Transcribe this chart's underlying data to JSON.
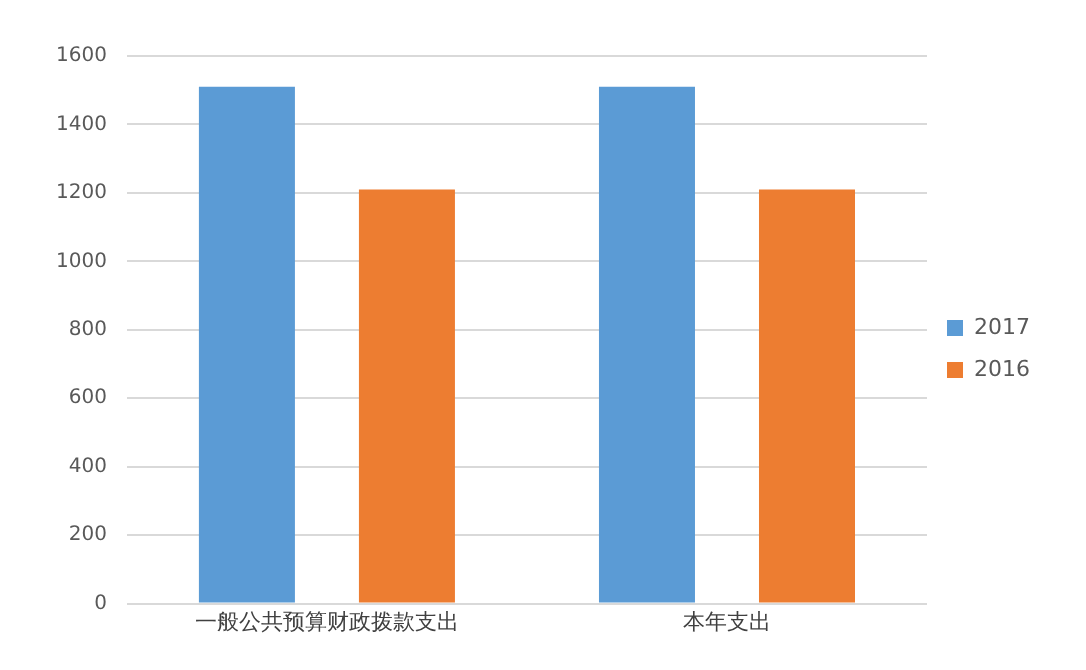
{
  "chart_data": {
    "type": "bar",
    "categories": [
      "一般公共预算财政拨款支出",
      "本年支出"
    ],
    "series": [
      {
        "name": "2017",
        "color": "#5b9bd5",
        "values": [
          1510,
          1510
        ]
      },
      {
        "name": "2016",
        "color": "#ed7d31",
        "values": [
          1210,
          1210
        ]
      }
    ],
    "ylim": [
      0,
      1600
    ],
    "yticks": [
      0,
      200,
      400,
      600,
      800,
      1000,
      1200,
      1400,
      1600
    ],
    "grid": "y",
    "legend": "right"
  }
}
